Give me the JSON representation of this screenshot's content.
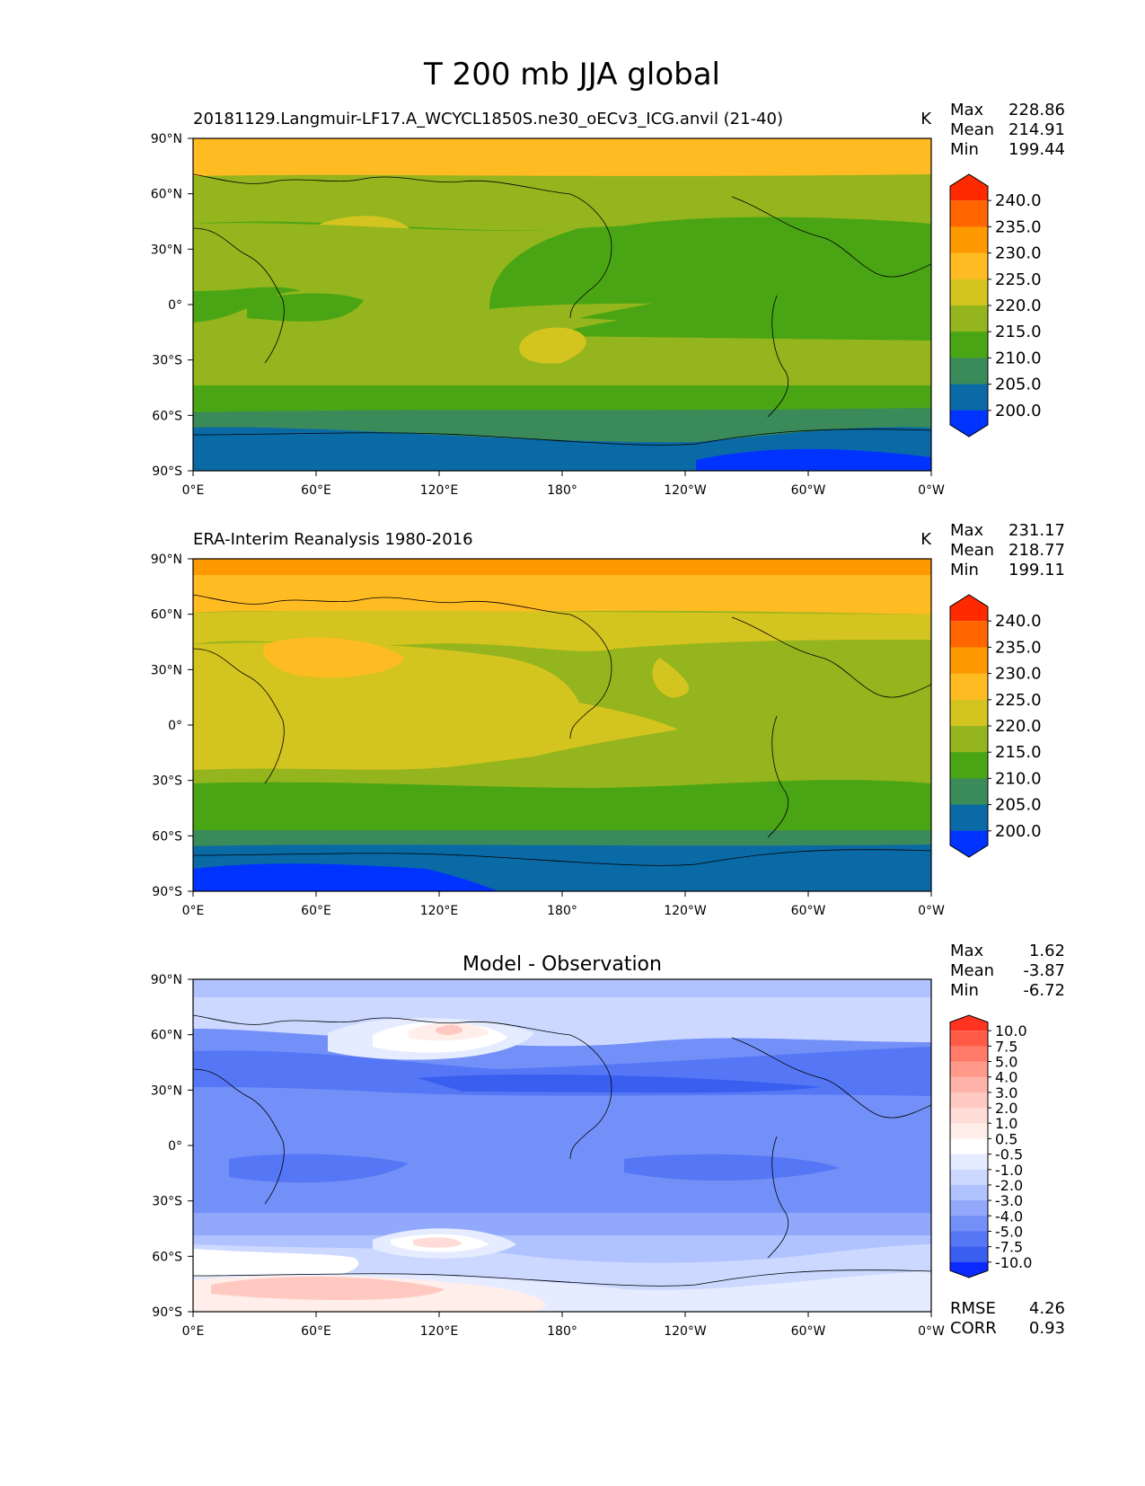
{
  "figure": {
    "title": "T 200 mb JJA global"
  },
  "chart_data": [
    {
      "type": "heatmap",
      "title": "20181129.Langmuir-LF17.A_WCYCL1850S.ne30_oECv3_ICG.anvil (21-40)",
      "units": "K",
      "stats": {
        "max_label": "Max",
        "mean_label": "Mean",
        "min_label": "Min",
        "max": "228.86",
        "mean": "214.91",
        "min": "199.44"
      },
      "xticks": [
        "0°E",
        "60°E",
        "120°E",
        "180°",
        "120°W",
        "60°W",
        "0°W"
      ],
      "yticks": [
        "90°N",
        "60°N",
        "30°N",
        "0°",
        "30°S",
        "60°S",
        "90°S"
      ],
      "colorbar": {
        "labels": [
          "240.0",
          "235.0",
          "230.0",
          "225.0",
          "220.0",
          "215.0",
          "210.0",
          "205.0",
          "200.0"
        ],
        "colors": [
          "#ff2a00",
          "#ff6600",
          "#ff9900",
          "#ffbb22",
          "#d4c41f",
          "#94b51d",
          "#4aa514",
          "#3a8a5a",
          "#0a6aa5",
          "#0033ff"
        ]
      },
      "field_colors": {
        "polar_north": "#ffbb22",
        "midlat": "#94b51d",
        "tropics": "#4aa514",
        "warm_band": "#d4c41f",
        "south_ocean": "#3a8a5a",
        "south_band": "#0a6aa5",
        "antarctic": "#0033ff"
      }
    },
    {
      "type": "heatmap",
      "title": "ERA-Interim Reanalysis 1980-2016",
      "units": "K",
      "stats": {
        "max_label": "Max",
        "mean_label": "Mean",
        "min_label": "Min",
        "max": "231.17",
        "mean": "218.77",
        "min": "199.11"
      },
      "xticks": [
        "0°E",
        "60°E",
        "120°E",
        "180°",
        "120°W",
        "60°W",
        "0°W"
      ],
      "yticks": [
        "90°N",
        "60°N",
        "30°N",
        "0°",
        "30°S",
        "60°S",
        "90°S"
      ],
      "colorbar": {
        "labels": [
          "240.0",
          "235.0",
          "230.0",
          "225.0",
          "220.0",
          "215.0",
          "210.0",
          "205.0",
          "200.0"
        ],
        "colors": [
          "#ff2a00",
          "#ff6600",
          "#ff9900",
          "#ffbb22",
          "#d4c41f",
          "#94b51d",
          "#4aa514",
          "#3a8a5a",
          "#0a6aa5",
          "#0033ff"
        ]
      }
    },
    {
      "type": "heatmap",
      "title": "Model - Observation",
      "stats": {
        "max_label": "Max",
        "mean_label": "Mean",
        "min_label": "Min",
        "max": "1.62",
        "mean": "-3.87",
        "min": "-6.72"
      },
      "metrics": {
        "rmse_label": "RMSE",
        "rmse": "4.26",
        "corr_label": "CORR",
        "corr": "0.93"
      },
      "xticks": [
        "0°E",
        "60°E",
        "120°E",
        "180°",
        "120°W",
        "60°W",
        "0°W"
      ],
      "yticks": [
        "90°N",
        "60°N",
        "30°N",
        "0°",
        "30°S",
        "60°S",
        "90°S"
      ],
      "colorbar": {
        "labels": [
          "10.0",
          "7.5",
          "5.0",
          "4.0",
          "3.0",
          "2.0",
          "1.0",
          "0.5",
          "-0.5",
          "-1.0",
          "-2.0",
          "-3.0",
          "-4.0",
          "-5.0",
          "-7.5",
          "-10.0"
        ],
        "colors": [
          "#ff3320",
          "#ff5a45",
          "#ff7a68",
          "#ff9a8a",
          "#ffb3a8",
          "#ffc9c1",
          "#ffdcd7",
          "#ffeeea",
          "#ffffff",
          "#e6ecff",
          "#ccd8ff",
          "#b0c2ff",
          "#91a8fb",
          "#7390f8",
          "#5577f5",
          "#3a5ff0",
          "#0a2aff"
        ]
      }
    }
  ]
}
